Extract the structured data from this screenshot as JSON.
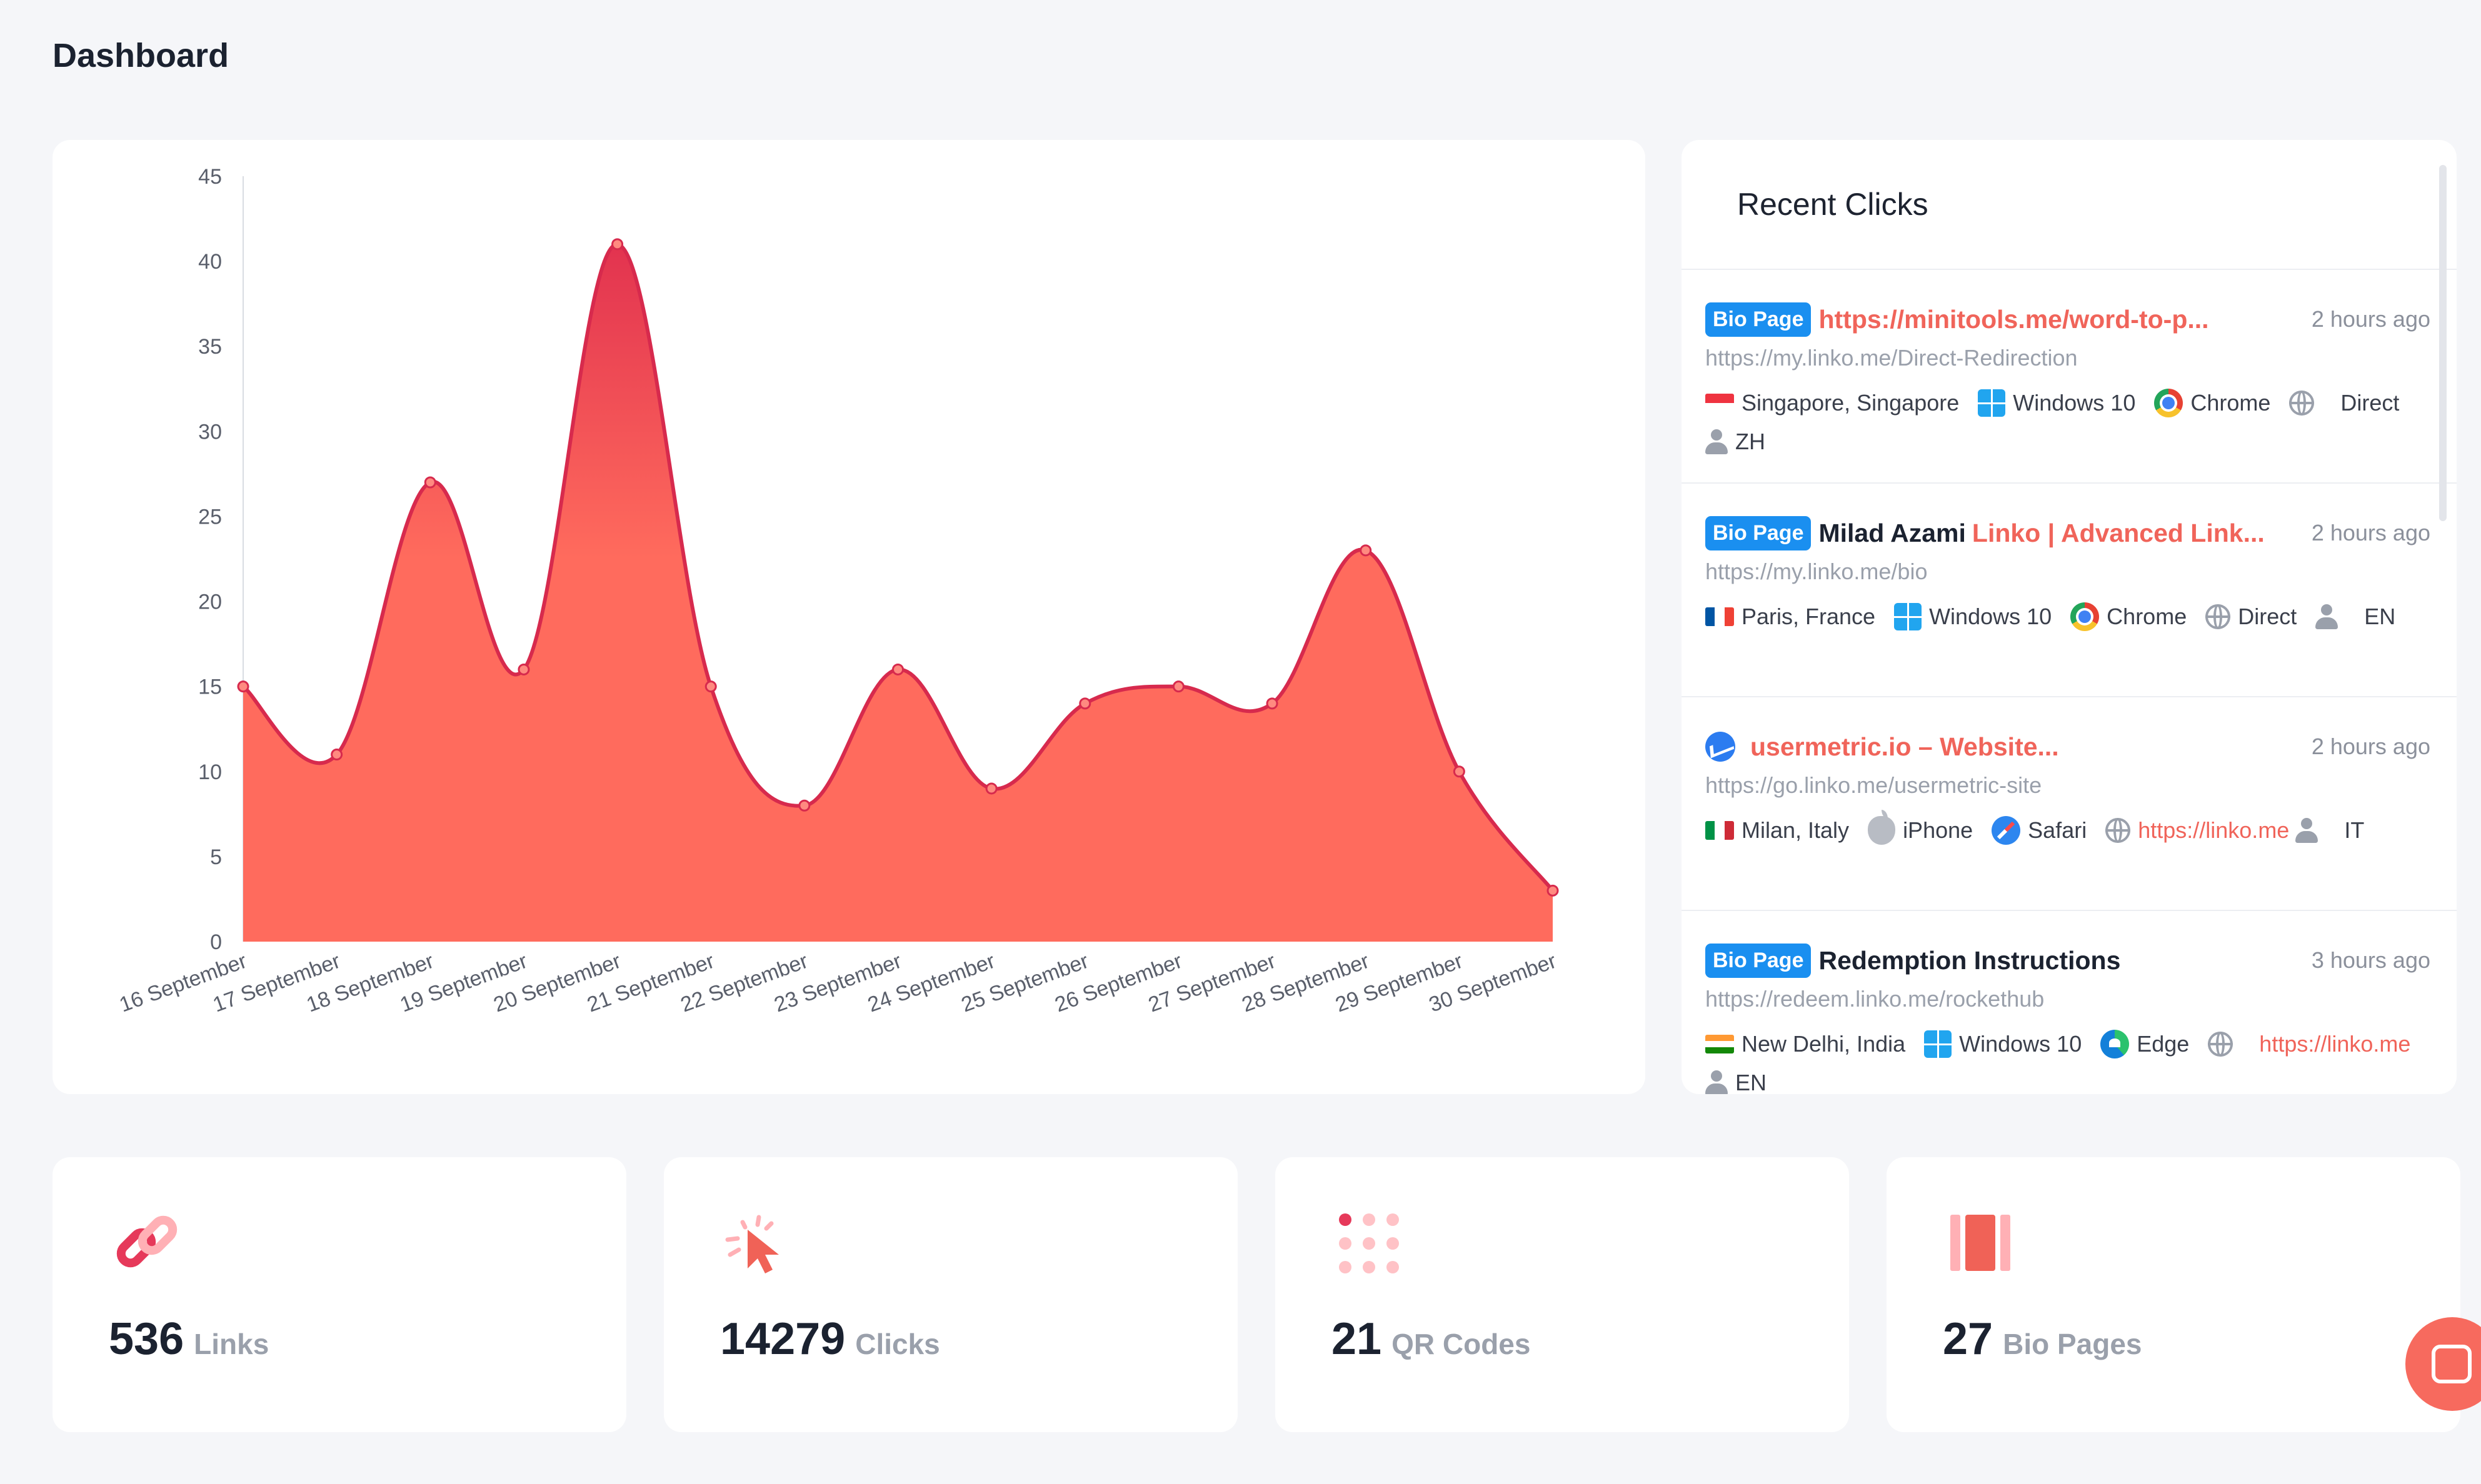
{
  "page": {
    "title": "Dashboard"
  },
  "chart_data": {
    "type": "area",
    "categories": [
      "16 September",
      "17 September",
      "18 September",
      "19 September",
      "20 September",
      "21 September",
      "22 September",
      "23 September",
      "24 September",
      "25 September",
      "26 September",
      "27 September",
      "28 September",
      "29 September",
      "30 September"
    ],
    "series": [
      {
        "values": [
          15,
          11,
          27,
          16,
          41,
          15,
          8,
          16,
          9,
          14,
          15,
          14,
          23,
          10,
          3
        ]
      }
    ],
    "ylim": [
      0,
      45
    ],
    "yticks": [
      0,
      5,
      10,
      15,
      20,
      25,
      30,
      35,
      40,
      45
    ],
    "colors": {
      "fill_top": "#e2334f",
      "fill_bottom": "#ff6b5d",
      "line": "#d72a4d"
    }
  },
  "recent_clicks": {
    "title": "Recent Clicks",
    "items": [
      {
        "badge": "Bio Page",
        "name": "",
        "link": "https://minitools.me/word-to-p...",
        "time": "2 hours ago",
        "url": "https://my.linko.me/Direct-Redirection",
        "location": "Singapore, Singapore",
        "flag": "sg-flag",
        "os": "Windows 10",
        "os_icon": "windows-icon",
        "browser": "Chrome",
        "browser_icon": "chrome-icon",
        "referrer": "Direct",
        "language": "ZH"
      },
      {
        "badge": "Bio Page",
        "name": "Milad Azami",
        "link": "Linko | Advanced Link...",
        "time": "2 hours ago",
        "url": "https://my.linko.me/bio",
        "location": "Paris, France",
        "flag": "fr-flag",
        "os": "Windows 10",
        "os_icon": "windows-icon",
        "browser": "Chrome",
        "browser_icon": "chrome-icon",
        "referrer": "Direct",
        "language": "EN"
      },
      {
        "badge": "",
        "name": "",
        "link": "usermetric.io – Website...",
        "time": "2 hours ago",
        "url": "https://go.linko.me/usermetric-site",
        "location": "Milan, Italy",
        "flag": "it-flag",
        "os": "iPhone",
        "os_icon": "apple-icon",
        "browser": "Safari",
        "browser_icon": "safari-icon",
        "referrer": "https://linko.me",
        "language": "IT"
      },
      {
        "badge": "Bio Page",
        "name": "Redemption Instructions",
        "link": "",
        "time": "3 hours ago",
        "url": "https://redeem.linko.me/rockethub",
        "location": "New Delhi, India",
        "flag": "in-flag",
        "os": "Windows 10",
        "os_icon": "windows-icon",
        "browser": "Edge",
        "browser_icon": "edge-icon",
        "referrer": "https://linko.me",
        "language": "EN"
      }
    ]
  },
  "stats": [
    {
      "value": "536",
      "label": "Links",
      "icon": "link-icon"
    },
    {
      "value": "14279",
      "label": "Clicks",
      "icon": "cursor-click-icon"
    },
    {
      "value": "21",
      "label": "QR Codes",
      "icon": "qr-dots-icon"
    },
    {
      "value": "27",
      "label": "Bio Pages",
      "icon": "bio-page-icon"
    }
  ],
  "colors": {
    "accent": "#f0645a",
    "badge": "#1a8ff0"
  }
}
